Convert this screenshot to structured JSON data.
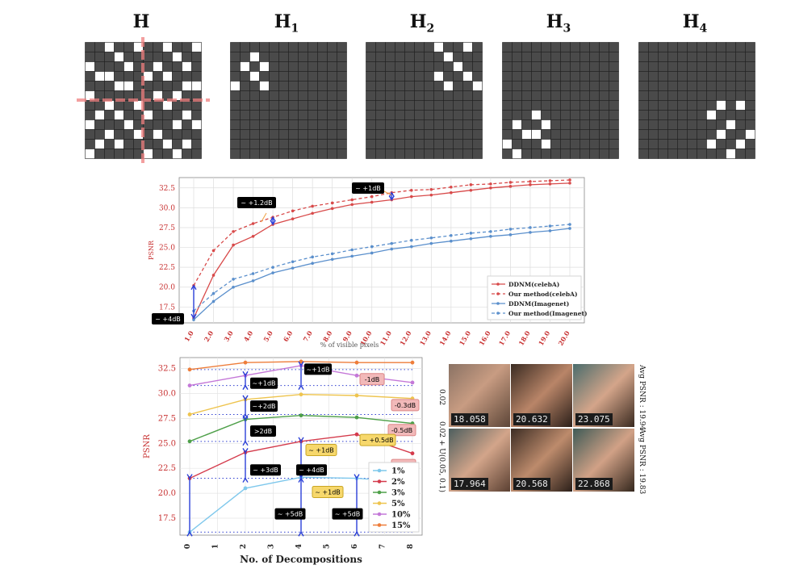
{
  "grids": {
    "titles": [
      {
        "base": "H",
        "sub": ""
      },
      {
        "base": "H",
        "sub": "1"
      },
      {
        "base": "H",
        "sub": "2"
      },
      {
        "base": "H",
        "sub": "3"
      },
      {
        "base": "H",
        "sub": "4"
      }
    ],
    "size": 12,
    "patterns": [
      [
        [
          0,
          2
        ],
        [
          0,
          5
        ],
        [
          0,
          8
        ],
        [
          0,
          11
        ],
        [
          1,
          3
        ],
        [
          1,
          9
        ],
        [
          2,
          0
        ],
        [
          2,
          4
        ],
        [
          2,
          7
        ],
        [
          2,
          10
        ],
        [
          3,
          1
        ],
        [
          3,
          2
        ],
        [
          3,
          6
        ],
        [
          3,
          8
        ],
        [
          4,
          3
        ],
        [
          4,
          4
        ],
        [
          4,
          10
        ],
        [
          4,
          11
        ],
        [
          5,
          0
        ],
        [
          5,
          7
        ],
        [
          5,
          9
        ],
        [
          6,
          2
        ],
        [
          6,
          5
        ],
        [
          6,
          8
        ],
        [
          7,
          1
        ],
        [
          7,
          3
        ],
        [
          7,
          6
        ],
        [
          7,
          10
        ],
        [
          8,
          0
        ],
        [
          8,
          4
        ],
        [
          8,
          9
        ],
        [
          8,
          11
        ],
        [
          9,
          2
        ],
        [
          9,
          5
        ],
        [
          9,
          7
        ],
        [
          10,
          1
        ],
        [
          10,
          3
        ],
        [
          10,
          8
        ],
        [
          10,
          10
        ],
        [
          11,
          0
        ],
        [
          11,
          6
        ],
        [
          11,
          9
        ]
      ],
      [
        [
          1,
          2
        ],
        [
          2,
          3
        ],
        [
          2,
          1
        ],
        [
          3,
          2
        ],
        [
          4,
          0
        ],
        [
          4,
          3
        ]
      ],
      [
        [
          0,
          7
        ],
        [
          0,
          10
        ],
        [
          1,
          8
        ],
        [
          2,
          9
        ],
        [
          3,
          7
        ],
        [
          3,
          10
        ],
        [
          4,
          8
        ],
        [
          4,
          11
        ]
      ],
      [
        [
          7,
          3
        ],
        [
          8,
          1
        ],
        [
          8,
          4
        ],
        [
          9,
          2
        ],
        [
          9,
          3
        ],
        [
          10,
          0
        ],
        [
          10,
          4
        ],
        [
          11,
          1
        ]
      ],
      [
        [
          6,
          8
        ],
        [
          6,
          10
        ],
        [
          7,
          7
        ],
        [
          8,
          9
        ],
        [
          9,
          8
        ],
        [
          9,
          11
        ],
        [
          10,
          7
        ],
        [
          10,
          10
        ],
        [
          11,
          9
        ]
      ]
    ]
  },
  "chart_data": [
    {
      "type": "line",
      "title": "",
      "xlabel": "% of visible pixels",
      "ylabel": "PSNR",
      "categories": [
        "1.0",
        "2.0",
        "3.0",
        "4.0",
        "5.0",
        "6.0",
        "7.0",
        "8.0",
        "9.0",
        "10.0",
        "11.0",
        "12.0",
        "13.0",
        "14.0",
        "15.0",
        "16.0",
        "17.0",
        "18.0",
        "19.0",
        "20.0"
      ],
      "ylim": [
        15.5,
        33.8
      ],
      "yticks": [
        17.5,
        20.0,
        22.5,
        25.0,
        27.5,
        30.0,
        32.5
      ],
      "legend_position": "bottom-right",
      "grid": true,
      "series": [
        {
          "name": "DDNM(celebA)",
          "color": "#d84a4a",
          "dashed": false,
          "values": [
            16.1,
            21.5,
            25.3,
            26.4,
            27.9,
            28.6,
            29.3,
            29.9,
            30.4,
            30.7,
            31.0,
            31.4,
            31.6,
            31.9,
            32.2,
            32.5,
            32.7,
            32.9,
            33.0,
            33.1
          ]
        },
        {
          "name": "Our method(celebA)",
          "color": "#d84a4a",
          "dashed": true,
          "values": [
            20.2,
            24.6,
            27.0,
            28.0,
            28.8,
            29.6,
            30.2,
            30.6,
            31.0,
            31.4,
            31.9,
            32.2,
            32.3,
            32.6,
            32.9,
            33.0,
            33.2,
            33.3,
            33.4,
            33.5
          ]
        },
        {
          "name": "DDNM(Imagenet)",
          "color": "#5a8fcc",
          "dashed": false,
          "values": [
            15.9,
            18.2,
            20.0,
            20.8,
            21.8,
            22.4,
            23.0,
            23.5,
            23.9,
            24.3,
            24.8,
            25.1,
            25.5,
            25.8,
            26.1,
            26.4,
            26.6,
            26.9,
            27.1,
            27.4
          ]
        },
        {
          "name": "Our method(Imagenet)",
          "color": "#5a8fcc",
          "dashed": true,
          "values": [
            17.0,
            19.2,
            21.0,
            21.7,
            22.5,
            23.2,
            23.8,
            24.2,
            24.7,
            25.1,
            25.5,
            25.9,
            26.2,
            26.5,
            26.8,
            27.0,
            27.3,
            27.5,
            27.7,
            27.9
          ]
        }
      ],
      "annotations": [
        "~ +4dB",
        "~ +1.2dB",
        "~ +1dB"
      ]
    },
    {
      "type": "line",
      "title": "",
      "xlabel": "No. of Decompositions",
      "ylabel": "PSNR",
      "x": [
        0,
        2,
        4,
        6,
        8
      ],
      "xticks": [
        0,
        1,
        2,
        3,
        4,
        5,
        6,
        7,
        8
      ],
      "ylim": [
        15.8,
        33.6
      ],
      "yticks": [
        17.5,
        20.0,
        22.5,
        25.0,
        27.5,
        30.0,
        32.5
      ],
      "legend_position": "bottom-right",
      "grid": true,
      "series": [
        {
          "name": "1%",
          "color": "#7fc8ec",
          "values": [
            16.1,
            20.5,
            21.6,
            21.5,
            21.1
          ]
        },
        {
          "name": "2%",
          "color": "#d43b4c",
          "values": [
            21.5,
            24.1,
            25.2,
            25.9,
            24.0
          ]
        },
        {
          "name": "3%",
          "color": "#4fa04a",
          "values": [
            25.2,
            27.4,
            27.8,
            27.6,
            27.0
          ]
        },
        {
          "name": "5%",
          "color": "#eec44e",
          "values": [
            27.9,
            29.4,
            29.9,
            29.8,
            29.5
          ]
        },
        {
          "name": "10%",
          "color": "#c478d8",
          "values": [
            30.8,
            31.8,
            32.8,
            31.8,
            31.1
          ]
        },
        {
          "name": "15%",
          "color": "#ee7d3a",
          "values": [
            32.4,
            33.1,
            33.2,
            33.1,
            33.1
          ]
        }
      ],
      "annotations": {
        "black": [
          "~+1dB",
          "~+1dB",
          "~+2dB",
          ">2dB",
          "~ +3dB",
          "~ +4dB",
          "~ +5dB",
          "~ +5dB"
        ],
        "pink": [
          "-1dB",
          "-0.3dB",
          "-0.5dB",
          "-2dB"
        ],
        "yellow": [
          "~ +1dB",
          "~ +0.5dB",
          "~ +1dB"
        ]
      }
    }
  ],
  "faces": {
    "row1": {
      "values": [
        "18.058",
        "20.632",
        "23.075"
      ],
      "label_left": "0.02",
      "label_right": "Avg PSNR : 19.94"
    },
    "row2": {
      "values": [
        "17.964",
        "20.568",
        "22.868"
      ],
      "label_left": "0.02 + U(0.05, 0.1)",
      "label_right": "Avg PSNR : 19.83"
    }
  }
}
